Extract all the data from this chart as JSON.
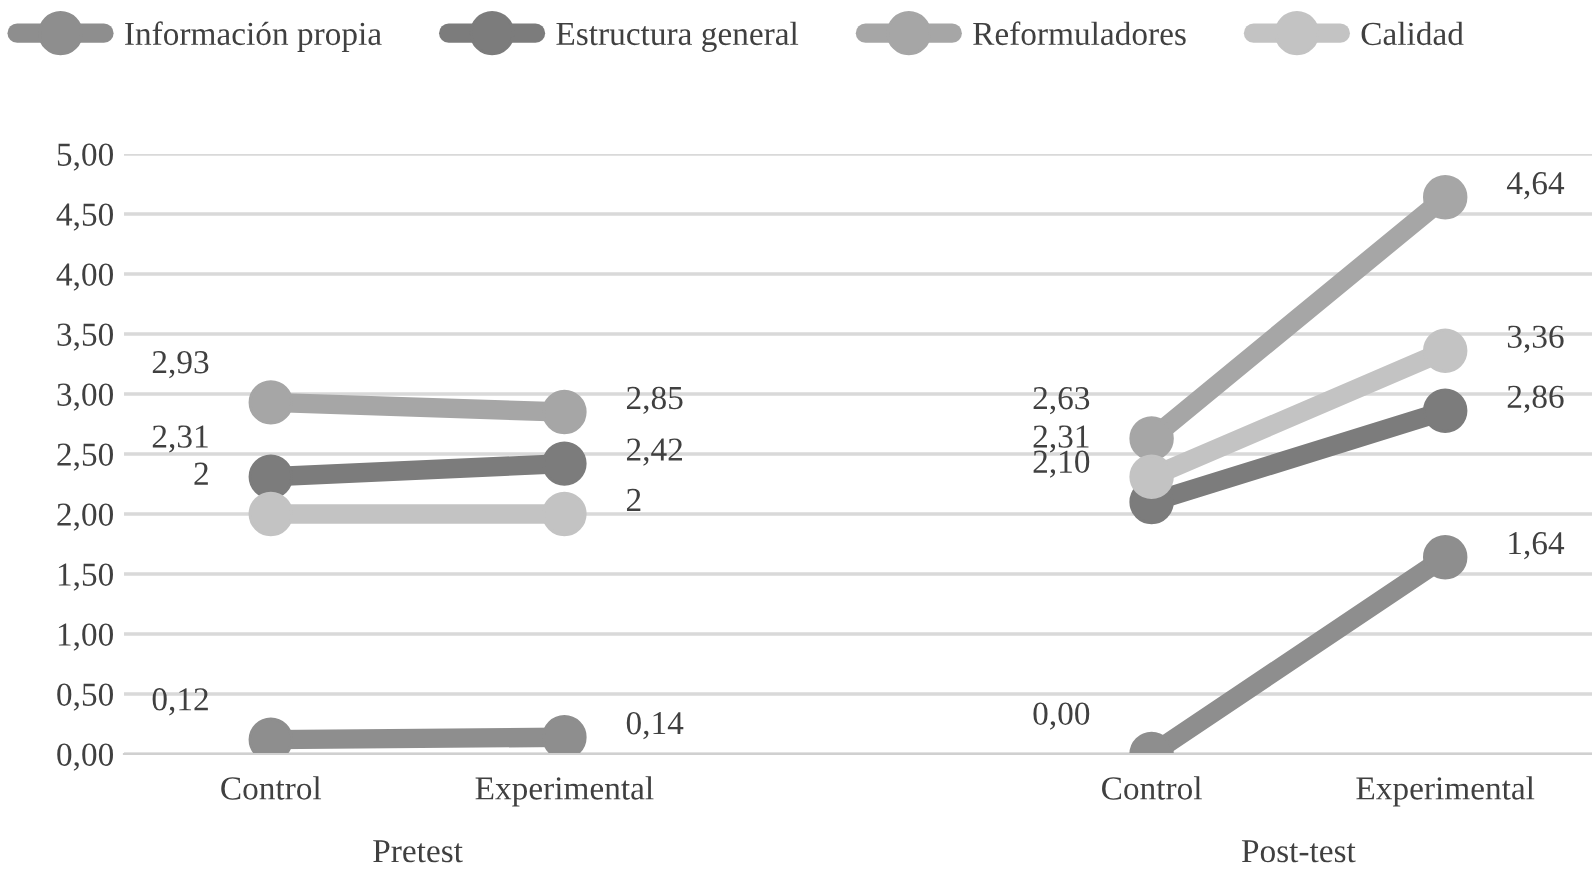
{
  "chart_data": {
    "type": "line",
    "categories": [
      "Control",
      "Experimental",
      null,
      "Control",
      "Experimental"
    ],
    "series": [
      {
        "name": "Información propia",
        "color": "#8e8e8e",
        "values": [
          0.12,
          0.14,
          null,
          0.0,
          1.64
        ],
        "value_labels": [
          "0,12",
          "0,14",
          null,
          "0,00",
          "1,64"
        ]
      },
      {
        "name": "Estructura general",
        "color": "#7c7c7c",
        "values": [
          2.31,
          2.42,
          null,
          2.1,
          2.86
        ],
        "value_labels": [
          "2,31",
          "2,42",
          null,
          "2,10",
          "2,86"
        ]
      },
      {
        "name": "Reformuladores",
        "color": "#a6a6a6",
        "values": [
          2.93,
          2.85,
          null,
          2.63,
          4.64
        ],
        "value_labels": [
          "2,93",
          "2,85",
          null,
          "2,63",
          "4,64"
        ]
      },
      {
        "name": "Calidad",
        "color": "#c3c3c3",
        "values": [
          2,
          2,
          null,
          2.31,
          3.36
        ],
        "value_labels": [
          "2",
          "2",
          null,
          "2,31",
          "3,36"
        ]
      }
    ],
    "annotations": [
      "Pretest",
      "Post-test"
    ],
    "ylim": [
      0,
      5
    ],
    "yticks": [
      {
        "value": 0,
        "label": "0,00"
      },
      {
        "value": 0.5,
        "label": "0,50"
      },
      {
        "value": 1,
        "label": "1,00"
      },
      {
        "value": 1.5,
        "label": "1,50"
      },
      {
        "value": 2,
        "label": "2,00"
      },
      {
        "value": 2.5,
        "label": "2,50"
      },
      {
        "value": 3,
        "label": "3,00"
      },
      {
        "value": 3.5,
        "label": "3,50"
      },
      {
        "value": 4,
        "label": "4,00"
      },
      {
        "value": 4.5,
        "label": "4,50"
      },
      {
        "value": 5,
        "label": "5,00"
      }
    ],
    "grid": "y",
    "legend": "top",
    "marker": "circle",
    "line_style": "solid"
  }
}
